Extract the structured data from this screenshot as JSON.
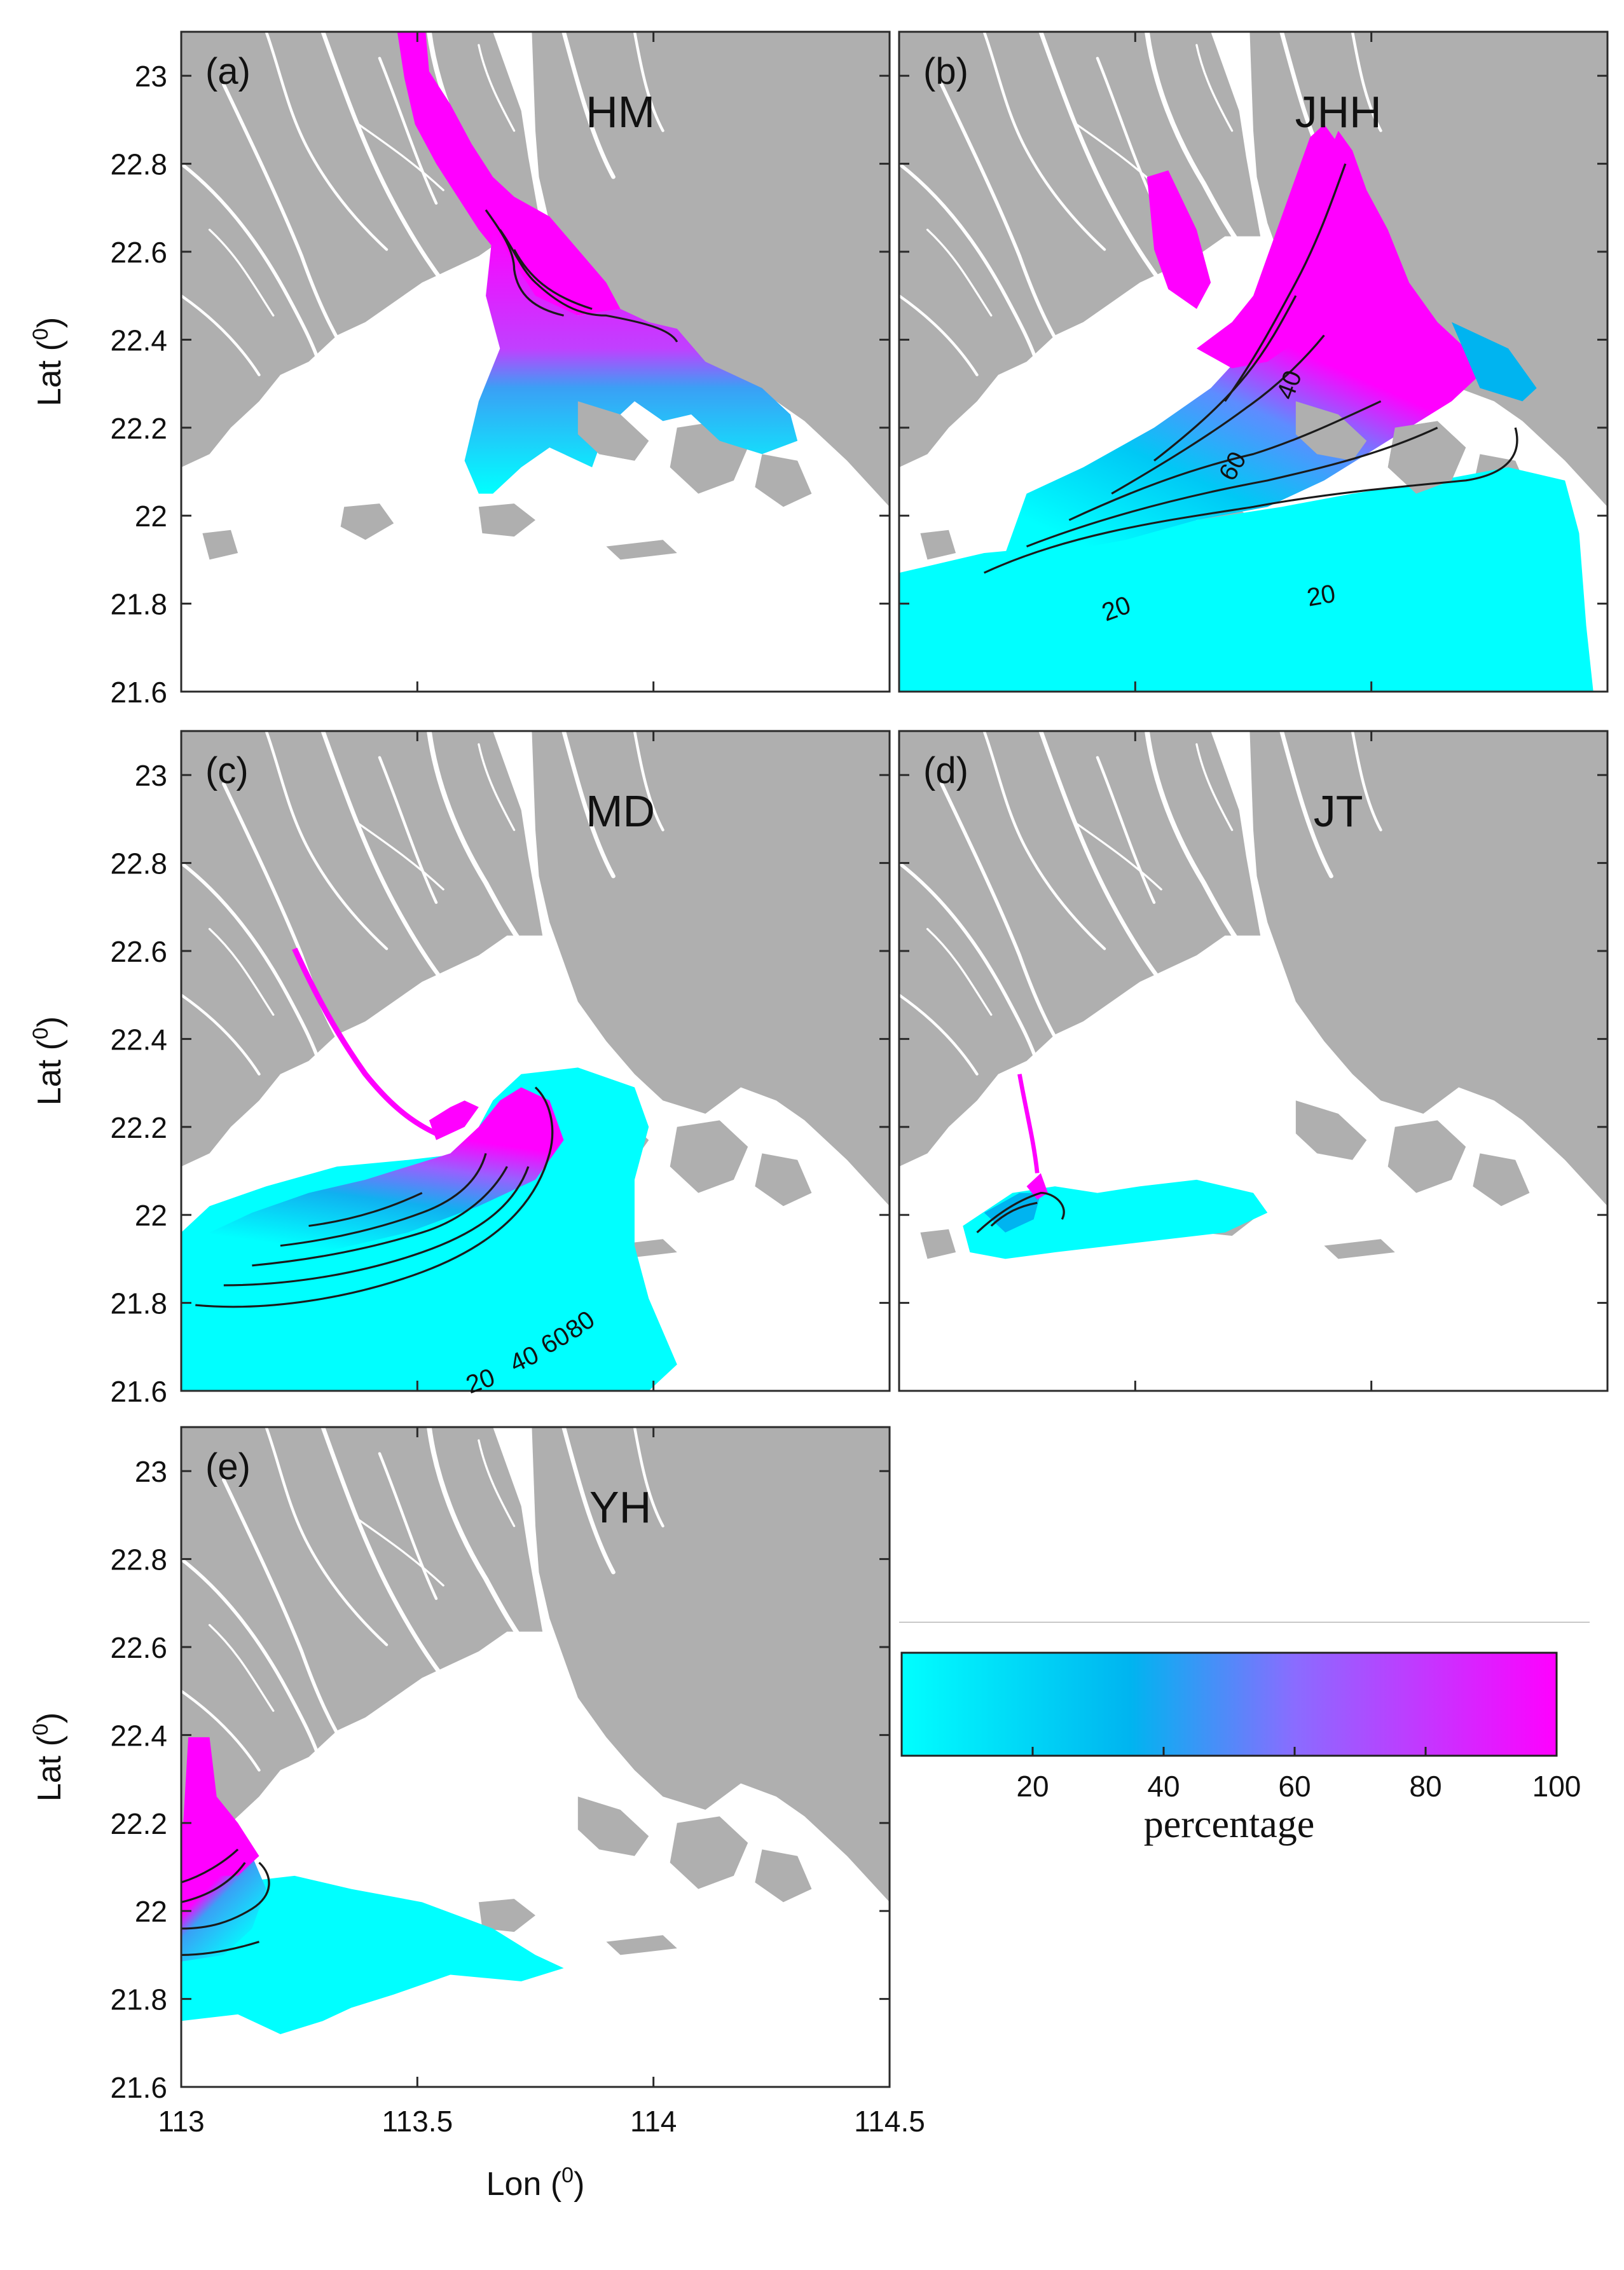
{
  "panels": [
    {
      "id": "a",
      "tag": "(a)",
      "name": "HM"
    },
    {
      "id": "b",
      "tag": "(b)",
      "name": "JHH"
    },
    {
      "id": "c",
      "tag": "(c)",
      "name": "MD"
    },
    {
      "id": "d",
      "tag": "(d)",
      "name": "JT"
    },
    {
      "id": "e",
      "tag": "(e)",
      "name": "YH"
    }
  ],
  "axes": {
    "ylabel": "Lat (0)",
    "xlabel": "Lon (0)",
    "lat_ticks": [
      "23",
      "22.8",
      "22.6",
      "22.4",
      "22.2",
      "22",
      "21.8",
      "21.6"
    ],
    "lon_ticks": [
      "113",
      "113.5",
      "114",
      "114.5"
    ],
    "lat_range": [
      21.6,
      23.1
    ],
    "lon_range": [
      113.0,
      114.5
    ]
  },
  "colorbar": {
    "label": "percentage",
    "ticks": [
      "20",
      "40",
      "60",
      "80",
      "100"
    ],
    "range": [
      0,
      100
    ],
    "colors": [
      "#00ffff",
      "#00b4f0",
      "#8a6cff",
      "#ff00ff"
    ]
  },
  "contour_labels": {
    "b": [
      "20",
      "20",
      "40",
      "60"
    ],
    "c": [
      "20",
      "40",
      "60",
      "80"
    ]
  },
  "colors": {
    "land": "#afafaf",
    "water": "#ffffff",
    "low": "#00ffff",
    "high": "#ff00ff",
    "contour": "#1a1a1a"
  }
}
